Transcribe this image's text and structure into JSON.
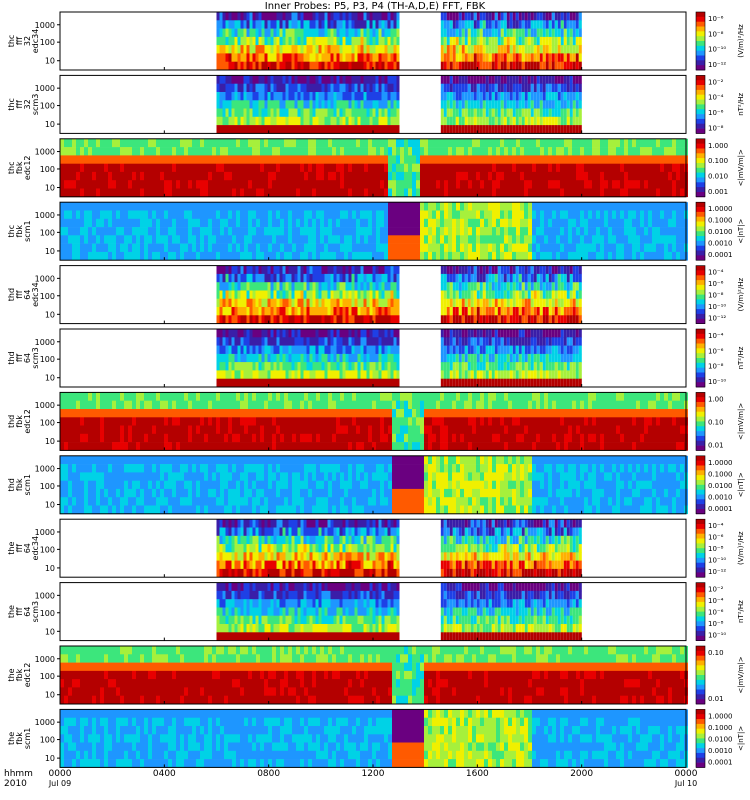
{
  "title": "Inner Probes: P5, P3, P4  (TH-A,D,E)  FFT, FBK",
  "x_axis": {
    "row1_label": "hhmm",
    "row2_label": "2010",
    "ticks": [
      {
        "top": "0000",
        "bottom": "Jul 09",
        "hour": 0
      },
      {
        "top": "0400",
        "bottom": "",
        "hour": 4
      },
      {
        "top": "0800",
        "bottom": "",
        "hour": 8
      },
      {
        "top": "1200",
        "bottom": "",
        "hour": 12
      },
      {
        "top": "1600",
        "bottom": "",
        "hour": 16
      },
      {
        "top": "2000",
        "bottom": "",
        "hour": 20
      },
      {
        "top": "0000",
        "bottom": "Jul 10",
        "hour": 24
      }
    ]
  },
  "colors": {
    "colormap": [
      "#6a0080",
      "#3a1ea8",
      "#1e40e6",
      "#1e96ff",
      "#00d2e6",
      "#3ce67c",
      "#a6f03c",
      "#f0f000",
      "#ffb000",
      "#ff5a00",
      "#e80000",
      "#b40000"
    ],
    "background": "#ffffff",
    "gap": "#ffffff"
  },
  "chart_data": [
    {
      "type": "heatmap",
      "kind": "fft_e",
      "y_label": [
        "thc",
        "fff",
        "32",
        "edc34"
      ],
      "yticks": [
        "1000",
        "100",
        "10"
      ],
      "cbar_ticks": [
        "10⁻⁶",
        "10⁻⁸",
        "10⁻¹⁰",
        "10⁻¹²"
      ],
      "cbar_label": "(V/m)²/Hz",
      "coverage_hours": [
        [
          6.0,
          13.0
        ],
        [
          14.6,
          19.9
        ]
      ],
      "dip_hour": 13.1
    },
    {
      "type": "heatmap",
      "kind": "fft_b",
      "y_label": [
        "thc",
        "fff",
        "32",
        "scm3"
      ],
      "yticks": [
        "1000",
        "100",
        "10"
      ],
      "cbar_ticks": [
        "10⁻²",
        "10⁻⁴",
        "10⁻⁶",
        "10⁻⁸"
      ],
      "cbar_label": "nT²/Hz",
      "coverage_hours": [
        [
          6.0,
          13.0
        ],
        [
          14.6,
          19.9
        ]
      ],
      "dip_hour": 13.1
    },
    {
      "type": "heatmap",
      "kind": "fbk_e",
      "y_label": [
        "thc",
        "fbk",
        "edc12"
      ],
      "yticks": [
        "1000",
        "100",
        "10"
      ],
      "cbar_ticks": [
        "1.000",
        "0.100",
        "0.010",
        "0.001"
      ],
      "cbar_label": "<|mV/m|>",
      "coverage_hours": [
        [
          0,
          24
        ]
      ],
      "dip_hour": 13.1
    },
    {
      "type": "heatmap",
      "kind": "fbk_b",
      "y_label": [
        "thc",
        "fbk",
        "scm1"
      ],
      "yticks": [
        "1000",
        "100",
        "10"
      ],
      "cbar_ticks": [
        "1.0000",
        "0.1000",
        "0.0100",
        "0.0010",
        "0.0001"
      ],
      "cbar_label": "<|nT|>",
      "coverage_hours": [
        [
          0,
          24
        ]
      ],
      "dip_hour": 13.1
    },
    {
      "type": "heatmap",
      "kind": "fft_e",
      "y_label": [
        "thd",
        "fff",
        "64",
        "edc34"
      ],
      "yticks": [
        "1000",
        "100",
        "10"
      ],
      "cbar_ticks": [
        "10⁻⁴",
        "10⁻⁶",
        "10⁻⁸",
        "10⁻¹⁰",
        "10⁻¹²"
      ],
      "cbar_label": "(V/m)²/Hz",
      "coverage_hours": [
        [
          6.0,
          13.0
        ],
        [
          14.6,
          19.9
        ]
      ],
      "dip_hour": 13.3
    },
    {
      "type": "heatmap",
      "kind": "fft_b",
      "y_label": [
        "thd",
        "fff",
        "64",
        "scm3"
      ],
      "yticks": [
        "1000",
        "100",
        "10"
      ],
      "cbar_ticks": [
        "10⁻⁴",
        "10⁻⁶",
        "10⁻⁸",
        "10⁻¹⁰"
      ],
      "cbar_label": "nT²/Hz",
      "coverage_hours": [
        [
          6.0,
          13.0
        ],
        [
          14.6,
          19.9
        ]
      ],
      "dip_hour": 13.3
    },
    {
      "type": "heatmap",
      "kind": "fbk_e",
      "y_label": [
        "thd",
        "fbk",
        "edc12"
      ],
      "yticks": [
        "1000",
        "100",
        "10"
      ],
      "cbar_ticks": [
        "1.00",
        "0.10",
        "0.01"
      ],
      "cbar_label": "<|mV/m|>",
      "coverage_hours": [
        [
          0,
          24
        ]
      ],
      "dip_hour": 13.3
    },
    {
      "type": "heatmap",
      "kind": "fbk_b",
      "y_label": [
        "thd",
        "fbk",
        "scm1"
      ],
      "yticks": [
        "1000",
        "100",
        "10"
      ],
      "cbar_ticks": [
        "1.0000",
        "0.1000",
        "0.0100",
        "0.0010",
        "0.0001"
      ],
      "cbar_label": "<|nT|>",
      "coverage_hours": [
        [
          0,
          24
        ]
      ],
      "dip_hour": 13.3
    },
    {
      "type": "heatmap",
      "kind": "fft_e",
      "y_label": [
        "the",
        "fff",
        "64",
        "edc34"
      ],
      "yticks": [
        "1000",
        "100",
        "10"
      ],
      "cbar_ticks": [
        "10⁻⁴",
        "10⁻⁶",
        "10⁻⁸",
        "10⁻¹⁰",
        "10⁻¹²"
      ],
      "cbar_label": "(V/m)²/Hz",
      "coverage_hours": [
        [
          6.0,
          13.0
        ],
        [
          14.6,
          19.9
        ]
      ],
      "dip_hour": 13.3
    },
    {
      "type": "heatmap",
      "kind": "fft_b",
      "y_label": [
        "the",
        "fff",
        "64",
        "scm3"
      ],
      "yticks": [
        "1000",
        "100",
        "10"
      ],
      "cbar_ticks": [
        "10⁻²",
        "10⁻⁴",
        "10⁻⁶",
        "10⁻⁸",
        "10⁻¹⁰"
      ],
      "cbar_label": "nT²/Hz",
      "coverage_hours": [
        [
          6.0,
          13.0
        ],
        [
          14.6,
          19.9
        ]
      ],
      "dip_hour": 13.3
    },
    {
      "type": "heatmap",
      "kind": "fbk_e",
      "y_label": [
        "the",
        "fbk",
        "edc12"
      ],
      "yticks": [
        "1000",
        "100",
        "10"
      ],
      "cbar_ticks": [
        "0.10",
        "0.01"
      ],
      "cbar_label": "<|mV/m|>",
      "coverage_hours": [
        [
          0,
          24
        ]
      ],
      "dip_hour": 13.3
    },
    {
      "type": "heatmap",
      "kind": "fbk_b",
      "y_label": [
        "the",
        "fbk",
        "scm1"
      ],
      "yticks": [
        "1000",
        "100",
        "10"
      ],
      "cbar_ticks": [
        "1.0000",
        "0.1000",
        "0.0100",
        "0.0010",
        "0.0001"
      ],
      "cbar_label": "<|nT|>",
      "coverage_hours": [
        [
          0,
          24
        ]
      ],
      "dip_hour": 13.3
    }
  ]
}
